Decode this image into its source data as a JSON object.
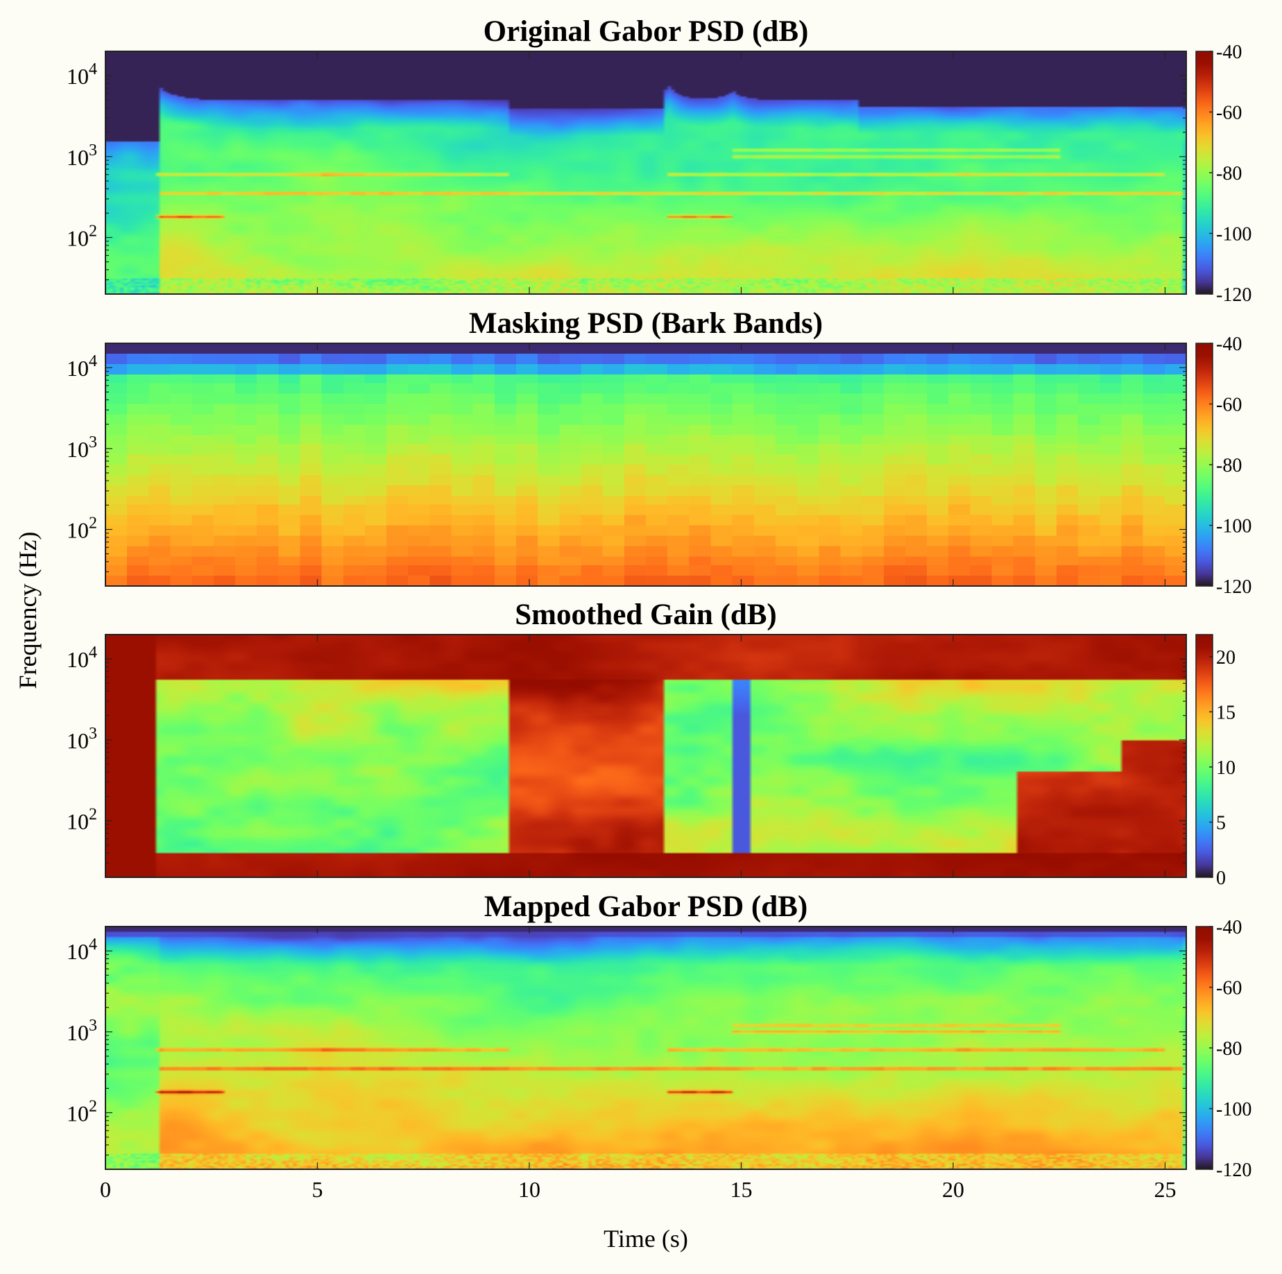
{
  "chart_data": [
    {
      "type": "heatmap",
      "title": "Original Gabor PSD (dB)",
      "variant": "psd",
      "colormap": "turbo",
      "clim": [
        -120,
        -40
      ],
      "colorbar_ticks": [
        "-40",
        "-60",
        "-80",
        "-100",
        "-120"
      ],
      "features": {
        "onsets_s": [
          1.25,
          13.3,
          14.8
        ],
        "harmonic_lines_hz": [
          180,
          350,
          600,
          1000,
          1200
        ],
        "dark_top_above_hz": 5000
      }
    },
    {
      "type": "heatmap",
      "title": "Masking PSD (Bark Bands)",
      "variant": "masking",
      "colormap": "turbo",
      "clim": [
        -120,
        -40
      ],
      "colorbar_ticks": [
        "-40",
        "-60",
        "-80",
        "-100",
        "-120"
      ],
      "features": {
        "bands": 24,
        "frames": 50
      }
    },
    {
      "type": "heatmap",
      "title": "Smoothed Gain (dB)",
      "variant": "gain",
      "colormap": "turbo",
      "clim": [
        0,
        22
      ],
      "colorbar_ticks": [
        "20",
        "15",
        "10",
        "5",
        "0"
      ],
      "features": {
        "high_gain_regions_s": [
          [
            0,
            1.2
          ],
          [
            9.5,
            13.2
          ],
          [
            21.5,
            25.5
          ]
        ]
      }
    },
    {
      "type": "heatmap",
      "title": "Mapped Gabor PSD (dB)",
      "variant": "mapped",
      "colormap": "turbo",
      "clim": [
        -120,
        -40
      ],
      "colorbar_ticks": [
        "-40",
        "-60",
        "-80",
        "-100",
        "-120"
      ],
      "features": {
        "onsets_s": [
          1.25,
          13.3,
          14.8
        ],
        "harmonic_lines_hz": [
          180,
          350,
          600,
          1000,
          1200
        ]
      }
    }
  ],
  "shared_axes": {
    "xlabel": "Time (s)",
    "ylabel": "Frequency (Hz)",
    "xlim": [
      0,
      25.5
    ],
    "ylim_hz": [
      20,
      20000
    ],
    "yscale": "log",
    "xticks": [
      "0",
      "5",
      "10",
      "15",
      "20",
      "25"
    ],
    "xtick_values": [
      0,
      5,
      10,
      15,
      20,
      25
    ],
    "yticks": [
      {
        "base": "10",
        "exp": "4",
        "value": 10000
      },
      {
        "base": "10",
        "exp": "3",
        "value": 1000
      },
      {
        "base": "10",
        "exp": "2",
        "value": 100
      }
    ]
  }
}
